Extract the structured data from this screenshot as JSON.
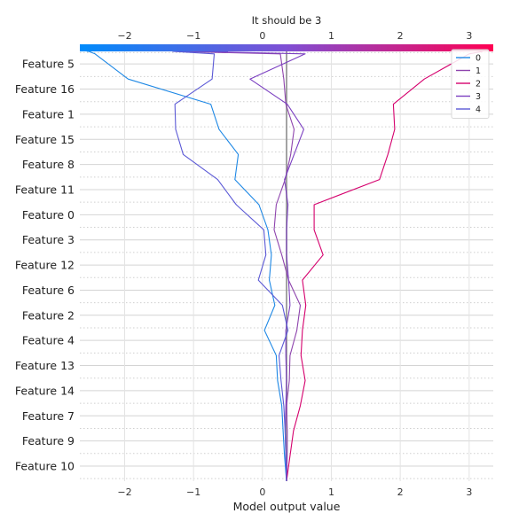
{
  "chart_data": {
    "type": "line",
    "title": "It should be 3",
    "xlabel": "Model output value",
    "ylabel": "",
    "xlim": [
      -2.65,
      3.35
    ],
    "x_ticks": [
      -2,
      -1,
      0,
      1,
      2,
      3
    ],
    "features": [
      "Feature 5",
      "Feature 16",
      "Feature 1",
      "Feature 15",
      "Feature 8",
      "Feature 11",
      "Feature 0",
      "Feature 3",
      "Feature 12",
      "Feature 6",
      "Feature 2",
      "Feature 4",
      "Feature 13",
      "Feature 14",
      "Feature 7",
      "Feature 9",
      "Feature 10"
    ],
    "base_value": 0.35,
    "grid": true,
    "legend_position": "top-right",
    "colorbar": {
      "left_color": "#008bfb",
      "mid_color": "#7f4fd4",
      "right_color": "#ff0052"
    },
    "series": [
      {
        "name": "0",
        "color": "#1e88e5",
        "values": [
          0.35,
          0.32,
          0.3,
          0.28,
          0.22,
          0.2,
          0.03,
          0.18,
          0.1,
          0.13,
          0.08,
          -0.05,
          -0.4,
          -0.35,
          -0.63,
          -0.75,
          -1.95,
          -2.43,
          -2.52,
          -2.55
        ]
      },
      {
        "name": "1",
        "color": "#8e44ad",
        "values": [
          0.35,
          0.36,
          0.36,
          0.35,
          0.39,
          0.4,
          0.5,
          0.55,
          0.38,
          0.28,
          0.17,
          0.2,
          0.33,
          0.41,
          0.46,
          0.34,
          0.31,
          0.26,
          -1.3,
          -0.5
        ]
      },
      {
        "name": "2",
        "color": "#d5006d",
        "values": [
          0.35,
          0.4,
          0.45,
          0.55,
          0.62,
          0.56,
          0.58,
          0.63,
          0.58,
          0.88,
          0.75,
          0.75,
          1.7,
          1.82,
          1.92,
          1.9,
          2.35,
          3.0,
          3.2
        ]
      },
      {
        "name": "3",
        "color": "#7b3fc1",
        "values": [
          0.35,
          0.34,
          0.33,
          0.34,
          0.35,
          0.34,
          0.34,
          0.4,
          0.38,
          0.35,
          0.35,
          0.37,
          0.32,
          0.46,
          0.6,
          0.36,
          -0.18,
          0.62,
          -1.05
        ]
      },
      {
        "name": "4",
        "color": "#5b59d6",
        "values": [
          0.35,
          0.34,
          0.33,
          0.31,
          0.27,
          0.24,
          0.37,
          0.29,
          -0.06,
          0.05,
          0.02,
          -0.38,
          -0.65,
          -1.15,
          -1.26,
          -1.27,
          -0.73,
          -0.7,
          -1.3,
          -0.5
        ]
      }
    ]
  }
}
